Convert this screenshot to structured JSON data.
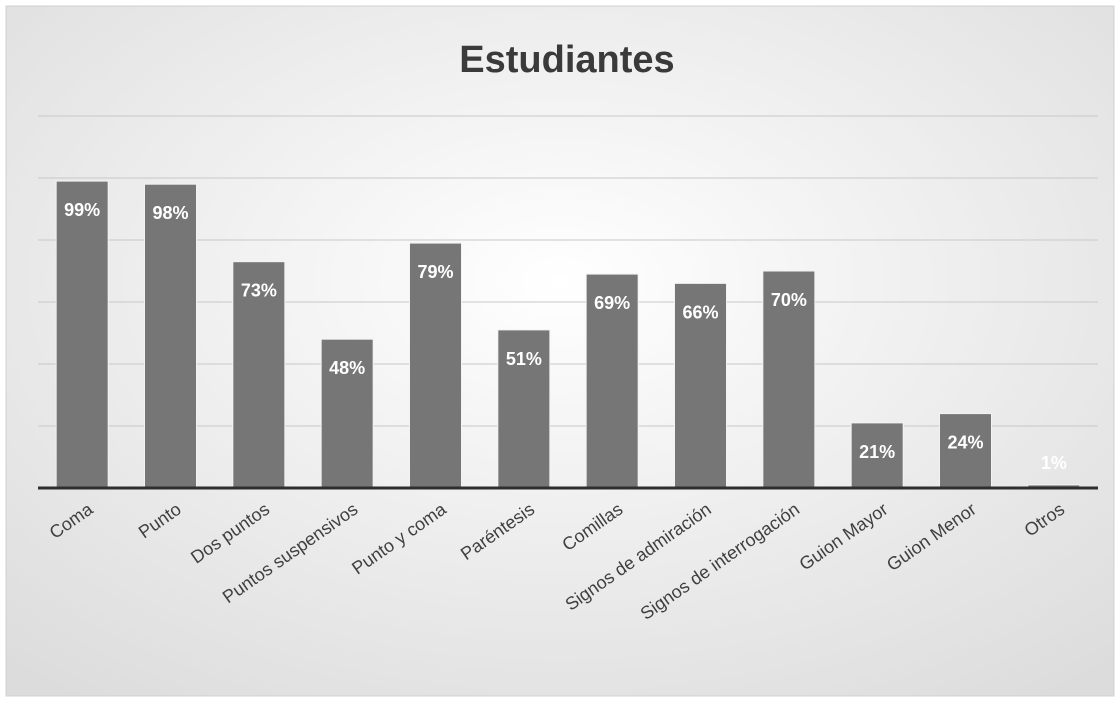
{
  "chart_data": {
    "type": "bar",
    "title": "Estudiantes",
    "xlabel": "",
    "ylabel": "",
    "categories": [
      "Coma",
      "Punto",
      "Dos puntos",
      "Puntos suspensivos",
      "Punto y coma",
      "Paréntesis",
      "Comillas",
      "Signos de admiración",
      "Signos de interrogación",
      "Guion Mayor",
      "Guion Menor",
      "Otros"
    ],
    "values": [
      99,
      98,
      73,
      48,
      79,
      51,
      69,
      66,
      70,
      21,
      24,
      1
    ],
    "data_labels": [
      "99%",
      "98%",
      "73%",
      "48%",
      "79%",
      "51%",
      "69%",
      "66%",
      "70%",
      "21%",
      "24%",
      "1%"
    ],
    "ylim": [
      0,
      120
    ],
    "grid": true,
    "legend": "none",
    "colors": {
      "bar": "#767676",
      "bar_edge": "#f2f2f2",
      "gridline": "#c8c8c8",
      "axis": "#2e2e2e",
      "title": "#3a3a3a",
      "data_label": "#ffffff",
      "category_label": "#3f3f3f",
      "background_center": "#ffffff",
      "background_edge": "#dcdcdc"
    }
  }
}
